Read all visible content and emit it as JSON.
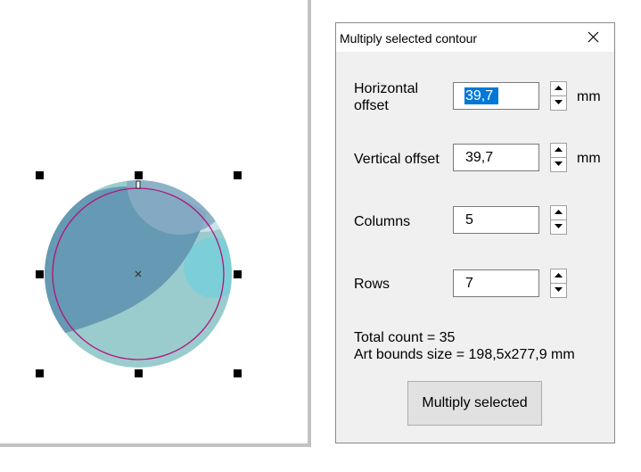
{
  "dialog": {
    "title": "Multiply selected contour",
    "horizontal_offset": {
      "label": "Horizontal offset",
      "value": "39,7",
      "unit": "mm"
    },
    "vertical_offset": {
      "label": "Vertical offset",
      "value": "39,7",
      "unit": "mm"
    },
    "columns": {
      "label": "Columns",
      "value": "5"
    },
    "rows": {
      "label": "Rows",
      "value": "7"
    },
    "total_count": "Total count = 35",
    "art_bounds": "Art bounds size = 198,5x277,9 mm",
    "multiply_button": "Multiply selected"
  },
  "icons": [
    "close-icon",
    "spin-up-icon",
    "spin-down-icon",
    "center-mark-icon"
  ],
  "colors": {
    "selection_highlight": "#0078d7",
    "contour_stroke": "#b0157c",
    "art_dark": "#6699b3",
    "art_light": "#9acccd",
    "art_cyan": "#7ccfd9"
  }
}
